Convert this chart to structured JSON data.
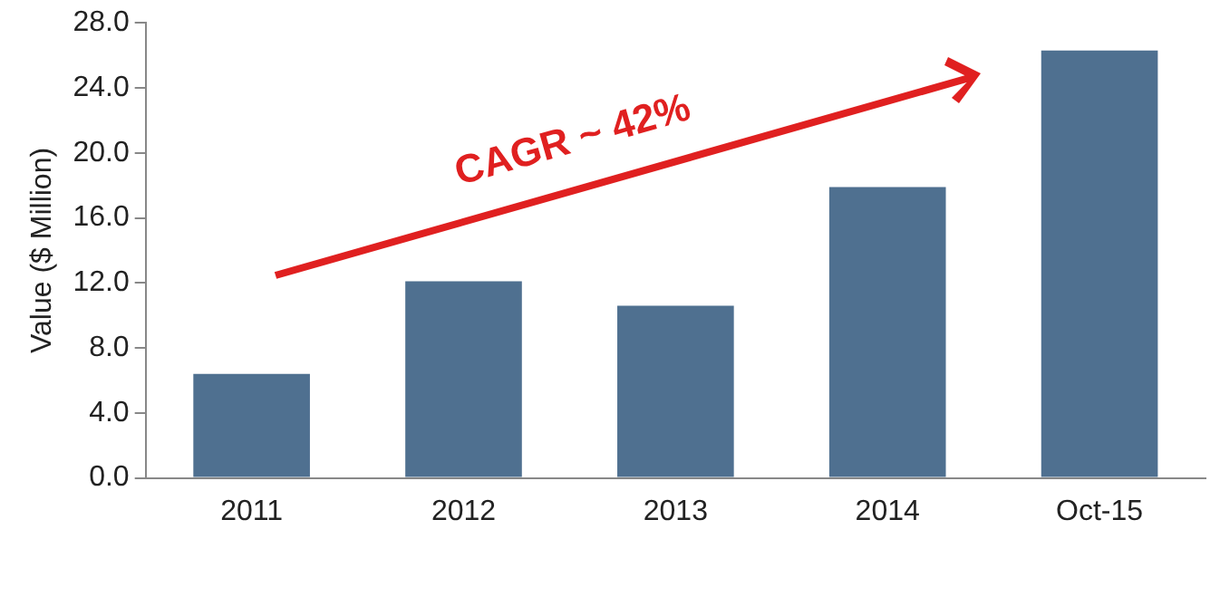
{
  "chart_data": {
    "type": "bar",
    "ylabel": "Value ($ Million)",
    "categories": [
      "2011",
      "2012",
      "2013",
      "2014",
      "Oct-15"
    ],
    "values": [
      6.4,
      12.1,
      10.6,
      17.9,
      26.3
    ],
    "color": "#4f7090",
    "ylim": [
      0,
      28
    ],
    "yticks": [
      {
        "value": 0,
        "label": "0.0"
      },
      {
        "value": 4,
        "label": "4.0"
      },
      {
        "value": 8,
        "label": "8.0"
      },
      {
        "value": 12,
        "label": "12.0"
      },
      {
        "value": 16,
        "label": "16.0"
      },
      {
        "value": 20,
        "label": "20.0"
      },
      {
        "value": 24,
        "label": "24.0"
      },
      {
        "value": 28,
        "label": "28.0"
      }
    ],
    "grid": false,
    "legend": false,
    "annotations": [
      "CAGR ~ 42%"
    ]
  }
}
